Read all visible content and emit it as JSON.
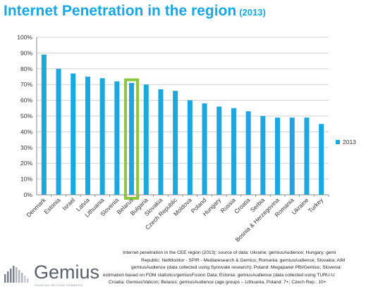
{
  "title": {
    "main": "Internet Penetration in the region",
    "sub": "(2013)",
    "color": "#1aa6df"
  },
  "chart_data": {
    "type": "bar",
    "categories": [
      "Denmark",
      "Estonia",
      "Israel",
      "Latvia",
      "Lithuania",
      "Slovenia",
      "Belarus",
      "Bulgaria",
      "Slovakia",
      "Czech Republic",
      "Moldova",
      "Poland",
      "Hungary",
      "Russia",
      "Croatia",
      "Serbia",
      "Bosnia & Herzegovina",
      "Romania",
      "Ukraine",
      "Turkey"
    ],
    "series": [
      {
        "name": "2013",
        "values": [
          89,
          80,
          77,
          75,
          74,
          72,
          71,
          70,
          67,
          66,
          60,
          58,
          56,
          55,
          53,
          50,
          49,
          49,
          49,
          45
        ]
      }
    ],
    "ylim": [
      0,
      100
    ],
    "yticks": [
      "0%",
      "10%",
      "20%",
      "30%",
      "40%",
      "50%",
      "60%",
      "70%",
      "80%",
      "90%",
      "100%"
    ],
    "grid": true,
    "legend": "right",
    "highlight_category": "Belarus",
    "bar_color": "#1ca7df",
    "highlight_color": "#8cc63f"
  },
  "footer": {
    "logo": "Gemius",
    "tagline": "THINKING BEYOND NUMBERS",
    "source_lines": [
      "Internet penetration in the CEE region (2013); source of data: Ukraine: gemiusAudience; Hungary: gemi",
      "Republic: NetMonitor - SPIR - Mediaresearch & Gemius; Romania: gemiusAudience; Slovakia: AIM",
      "gemiusAudience (data collected using Synovate research); Poland: Megapanel PBI/Gemius; Slovenia:",
      "estimation based on FOM statistics/gemiusFusion Data; Estonia: gemiusAudience (data collected using TURU-U",
      "Croatia: Gemius/Valicon; Belarus: gemiusAudience (age groups – Lithuania, Poland: 7+; Czech Rep.: 10+"
    ]
  }
}
